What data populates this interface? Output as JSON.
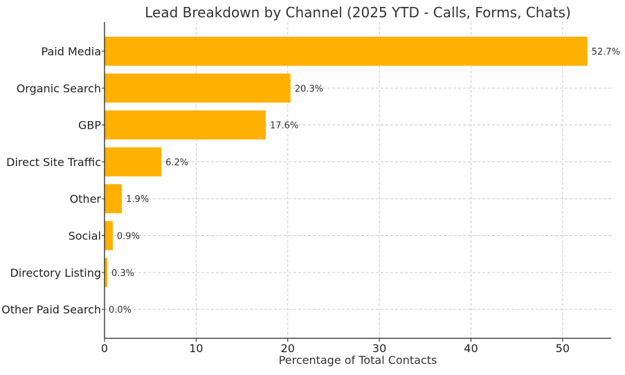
{
  "chart_data": {
    "type": "bar",
    "orientation": "horizontal",
    "title": "Lead Breakdown by Channel (2025 YTD - Calls, Forms, Chats)",
    "xlabel": "Percentage of Total Contacts",
    "ylabel": "",
    "categories": [
      "Paid Media",
      "Organic Search",
      "GBP",
      "Direct Site Traffic",
      "Other",
      "Social",
      "Directory Listing",
      "Other Paid Search"
    ],
    "values": [
      52.7,
      20.3,
      17.6,
      6.2,
      1.9,
      0.9,
      0.3,
      0.0
    ],
    "value_labels": [
      "52.7%",
      "20.3%",
      "17.6%",
      "6.2%",
      "1.9%",
      "0.9%",
      "0.3%",
      "0.0%"
    ],
    "xlim": [
      0,
      55.3
    ],
    "xticks": [
      0,
      10,
      20,
      30,
      40,
      50
    ],
    "grid": true,
    "bar_color": "#FFB000"
  }
}
